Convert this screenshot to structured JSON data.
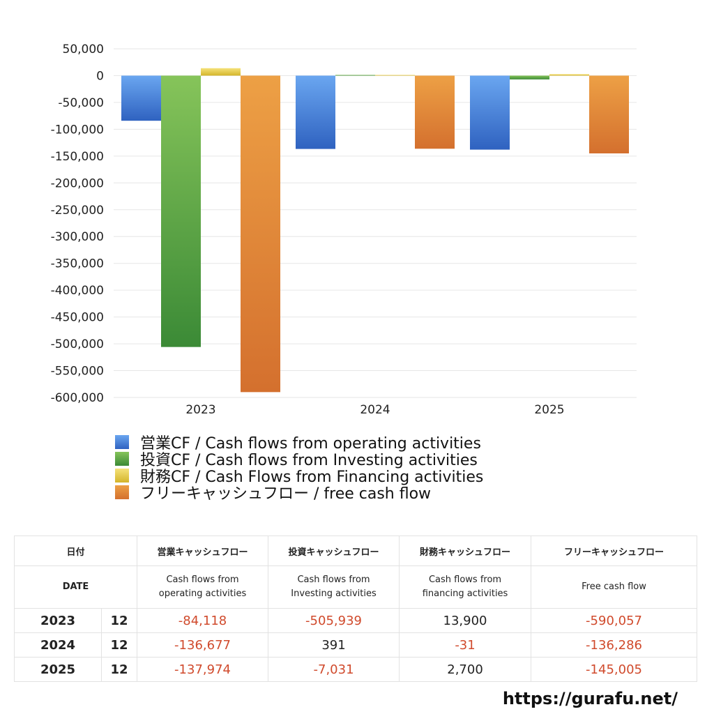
{
  "chart_data": {
    "type": "bar",
    "categories": [
      "2023",
      "2024",
      "2025"
    ],
    "series": [
      {
        "name": "営業CF / Cash flows from operating activities",
        "color": "#3f7fd8",
        "values": [
          -84118,
          -136677,
          -137974
        ]
      },
      {
        "name": "投資CF / Cash flows from Investing activities",
        "color": "#4f9a3a",
        "values": [
          -505939,
          391,
          -7031
        ]
      },
      {
        "name": "財務CF / Cash Flows from Financing activities",
        "color": "#e2c63a",
        "values": [
          13900,
          -31,
          2700
        ]
      },
      {
        "name": "フリーキャッシュフロー / free cash flow",
        "color": "#e08a35",
        "values": [
          -590057,
          -136286,
          -145005
        ]
      }
    ],
    "ylim": [
      -600000,
      50000
    ],
    "yticks": [
      50000,
      0,
      -50000,
      -100000,
      -150000,
      -200000,
      -250000,
      -300000,
      -350000,
      -400000,
      -450000,
      -500000,
      -550000,
      -600000
    ],
    "ytick_labels": [
      "50,000",
      "0",
      "-50,000",
      "-100,000",
      "-150,000",
      "-200,000",
      "-250,000",
      "-300,000",
      "-350,000",
      "-400,000",
      "-450,000",
      "-500,000",
      "-550,000",
      "-600,000"
    ],
    "grid": true,
    "legend_position": "bottom-left"
  },
  "table": {
    "header_jp": {
      "date": "日付",
      "operating": "営業キャッシュフロー",
      "investing": "投資キャッシュフロー",
      "financing": "財務キャッシュフロー",
      "free": "フリーキャッシュフロー"
    },
    "header_en": {
      "date": "DATE",
      "operating_1": "Cash flows from",
      "operating_2": "operating activities",
      "investing_1": "Cash flows from",
      "investing_2": "Investing activities",
      "financing_1": "Cash flows from",
      "financing_2": "financing activities",
      "free": "Free cash flow"
    },
    "rows": [
      {
        "year": "2023",
        "month": "12",
        "operating": "-84,118",
        "investing": "-505,939",
        "financing": "13,900",
        "free": "-590,057"
      },
      {
        "year": "2024",
        "month": "12",
        "operating": "-136,677",
        "investing": "391",
        "financing": "-31",
        "free": "-136,286"
      },
      {
        "year": "2025",
        "month": "12",
        "operating": "-137,974",
        "investing": "-7,031",
        "financing": "2,700",
        "free": "-145,005"
      }
    ]
  },
  "footer": {
    "url": "https://gurafu.net/"
  }
}
